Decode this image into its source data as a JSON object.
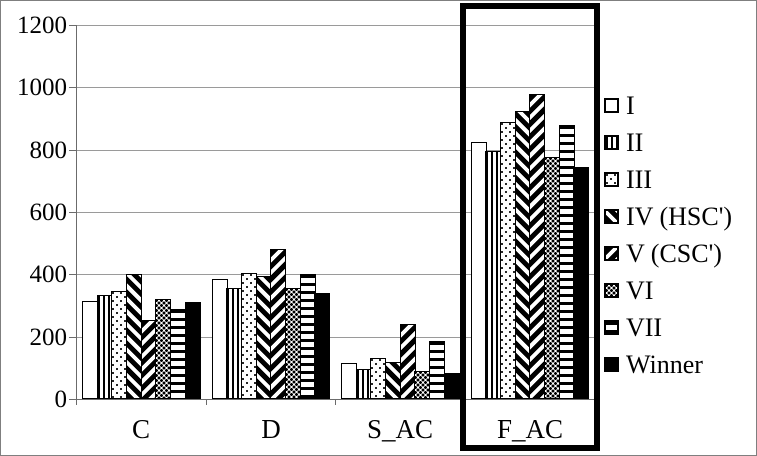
{
  "chart_data": {
    "type": "bar",
    "title": "",
    "xlabel": "",
    "ylabel": "",
    "categories": [
      "C",
      "D",
      "S_AC",
      "F_AC"
    ],
    "series": [
      {
        "name": "I",
        "pattern": "plain",
        "values": [
          315,
          385,
          115,
          825
        ]
      },
      {
        "name": "II",
        "pattern": "vertical-stripes",
        "values": [
          335,
          355,
          95,
          795
        ]
      },
      {
        "name": "III",
        "pattern": "dots-sparse",
        "values": [
          345,
          405,
          130,
          890
        ]
      },
      {
        "name": "IV (HSC')",
        "pattern": "diagonal-back",
        "values": [
          400,
          395,
          120,
          925
        ]
      },
      {
        "name": "V (CSC')",
        "pattern": "diagonal-forward",
        "values": [
          255,
          480,
          240,
          980
        ]
      },
      {
        "name": "VI",
        "pattern": "dots-dense",
        "values": [
          320,
          355,
          90,
          775
        ]
      },
      {
        "name": "VII",
        "pattern": "horizontal-stripes",
        "values": [
          290,
          400,
          185,
          880
        ]
      },
      {
        "name": "Winner",
        "pattern": "solid-black",
        "values": [
          310,
          340,
          85,
          745
        ]
      }
    ],
    "y_ticks": [
      0,
      200,
      400,
      600,
      800,
      1000,
      1200
    ],
    "ylim": [
      0,
      1200
    ],
    "grid": true,
    "legend_position": "right",
    "highlighted_category": "F_AC",
    "colors": {
      "bar_stroke": "#000000",
      "gridline": "#9a9a9a",
      "axis": "#6b6b6b",
      "highlight_box": "#000000",
      "background": "#ffffff"
    }
  }
}
